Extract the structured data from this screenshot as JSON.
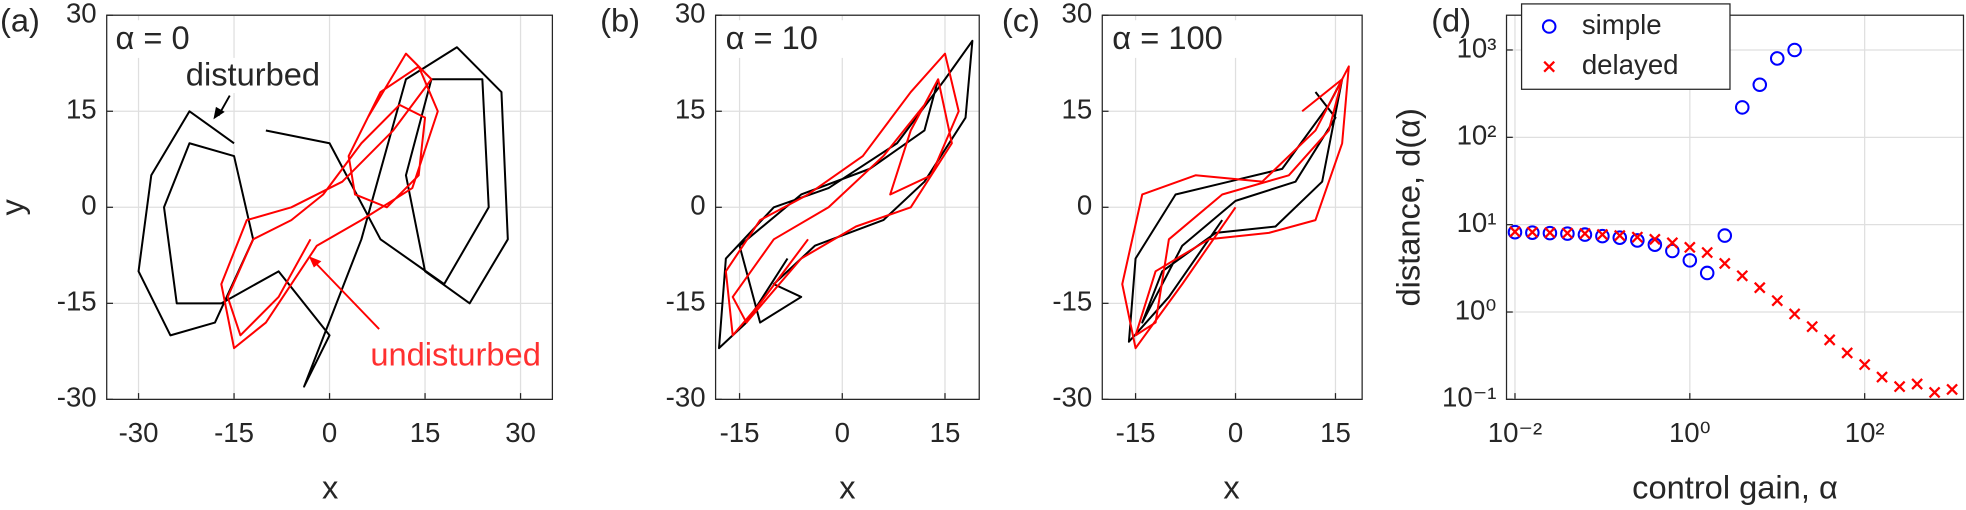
{
  "chart_data": [
    {
      "type": "line",
      "label": "(a)",
      "x_label": "x",
      "y_label": "y",
      "annotations": [
        "α = 0",
        "disturbed",
        "undisturbed"
      ],
      "xlim": [
        -35,
        35
      ],
      "xticks": [
        -30,
        -15,
        0,
        15,
        30
      ],
      "ylim": [
        -30,
        30
      ],
      "yticks": [
        -30,
        -15,
        0,
        15,
        30
      ],
      "grid": true,
      "series": [
        {
          "color": "#000000",
          "x": [
            -15,
            -22,
            -28,
            -30,
            -25,
            -18,
            -12,
            -15,
            -22,
            -26,
            -24,
            -17,
            -8,
            0,
            -4,
            5,
            12,
            20,
            27,
            28,
            22,
            15,
            12,
            16,
            24,
            25,
            18,
            8,
            0,
            -10
          ],
          "y": [
            10,
            15,
            5,
            -10,
            -20,
            -18,
            -5,
            8,
            10,
            0,
            -15,
            -15,
            -10,
            -20,
            -28,
            -5,
            20,
            25,
            18,
            -5,
            -15,
            -10,
            5,
            20,
            20,
            0,
            -12,
            -5,
            10,
            12
          ]
        },
        {
          "color": "#ff0000",
          "x": [
            -3,
            -8,
            -14,
            -16,
            -12,
            -6,
            -1,
            5,
            11,
            15,
            14,
            9,
            4,
            3,
            8,
            14,
            17,
            13,
            5,
            -2,
            -10,
            -15,
            -17,
            -13,
            -6,
            2,
            10,
            16,
            12,
            6
          ],
          "y": [
            -5,
            -14,
            -20,
            -14,
            -5,
            -2,
            2,
            10,
            16,
            14,
            5,
            0,
            2,
            8,
            18,
            22,
            15,
            3,
            -2,
            -6,
            -18,
            -22,
            -12,
            -2,
            0,
            4,
            12,
            20,
            24,
            14
          ]
        }
      ]
    },
    {
      "type": "line",
      "label": "(b)",
      "x_label": "x",
      "annotations": [
        "α = 10"
      ],
      "xlim": [
        -18.5,
        20
      ],
      "xticks": [
        -15,
        0,
        15
      ],
      "ylim": [
        -30,
        30
      ],
      "yticks": [
        -30,
        -15,
        0,
        15,
        30
      ],
      "grid": true,
      "series": [
        {
          "color": "#000000",
          "x": [
            -8,
            -14,
            -18,
            -17,
            -10,
            -2,
            8,
            15,
            19,
            18,
            12,
            6,
            -4,
            -10,
            -6,
            -12,
            -15,
            -6,
            4,
            12,
            14
          ],
          "y": [
            -8,
            -18,
            -22,
            -8,
            0,
            3,
            10,
            20,
            26,
            14,
            4,
            -2,
            -6,
            -12,
            -14,
            -18,
            -6,
            2,
            6,
            12,
            20
          ]
        },
        {
          "color": "#ff0000",
          "x": [
            -5,
            -12,
            -16,
            -17,
            -12,
            -5,
            3,
            10,
            15,
            17,
            13,
            7,
            10,
            14,
            16,
            10,
            2,
            -6,
            -14,
            -16,
            -10,
            -2,
            6,
            12
          ],
          "y": [
            -5,
            -15,
            -20,
            -10,
            -2,
            2,
            8,
            18,
            24,
            15,
            5,
            2,
            12,
            20,
            10,
            0,
            -3,
            -8,
            -18,
            -14,
            -5,
            0,
            8,
            16
          ]
        }
      ]
    },
    {
      "type": "line",
      "label": "(c)",
      "x_label": "x",
      "annotations": [
        "α = 100"
      ],
      "xlim": [
        -20,
        19
      ],
      "xticks": [
        -15,
        0,
        15
      ],
      "ylim": [
        -30,
        30
      ],
      "yticks": [
        -30,
        -15,
        0,
        15,
        30
      ],
      "grid": true,
      "series": [
        {
          "color": "#000000",
          "x": [
            -2,
            -10,
            -16,
            -15,
            -9,
            -1,
            7,
            14,
            16,
            13,
            6,
            -3,
            -11,
            -14,
            -8,
            0,
            9,
            15,
            12
          ],
          "y": [
            -2,
            -14,
            -21,
            -8,
            2,
            4,
            6,
            16,
            20,
            4,
            -3,
            -4,
            -10,
            -18,
            -6,
            1,
            4,
            14,
            18
          ]
        },
        {
          "color": "#ff0000",
          "x": [
            0,
            -8,
            -15,
            -17,
            -14,
            -6,
            4,
            12,
            17,
            16,
            12,
            5,
            -4,
            -12,
            -15,
            -12,
            -10,
            -2,
            8,
            14,
            16,
            10
          ],
          "y": [
            0,
            -12,
            -22,
            -12,
            2,
            5,
            4,
            12,
            22,
            10,
            -2,
            -4,
            -5,
            -10,
            -20,
            -18,
            -5,
            2,
            5,
            12,
            20,
            15
          ]
        }
      ]
    },
    {
      "type": "scatter",
      "label": "(d)",
      "x_label": "control gain, α",
      "y_label": "distance, d(α)",
      "log_scale": true,
      "grid": true,
      "legend": "upper left",
      "xlim": [
        0.008,
        1350
      ],
      "xticks": [
        {
          "value": 0.01,
          "label": "10⁻²"
        },
        {
          "value": 1,
          "label": "10⁰"
        },
        {
          "value": 100,
          "label": "10²"
        }
      ],
      "ylim": [
        0.1,
        2500
      ],
      "yticks": [
        {
          "value": 0.1,
          "label": "10⁻¹"
        },
        {
          "value": 1,
          "label": "10⁰"
        },
        {
          "value": 10,
          "label": "10¹"
        },
        {
          "value": 100,
          "label": "10²"
        },
        {
          "value": 1000,
          "label": "10³"
        }
      ],
      "series": [
        {
          "name": "simple",
          "color": "#0000ff",
          "marker": "o",
          "x": [
            0.01,
            0.0158,
            0.0251,
            0.0398,
            0.0631,
            0.1,
            0.158,
            0.251,
            0.398,
            0.631,
            1,
            1.58,
            2.51,
            3.98,
            6.31,
            10,
            15.8
          ],
          "values": [
            8.2,
            8.1,
            8,
            7.9,
            7.7,
            7.4,
            7.1,
            6.6,
            5.9,
            5,
            3.9,
            2.8,
            7.5,
            220,
            400,
            800,
            1000
          ]
        },
        {
          "name": "delayed",
          "color": "#ff0000",
          "marker": "x",
          "x": [
            0.01,
            0.0158,
            0.0251,
            0.0398,
            0.0631,
            0.1,
            0.158,
            0.251,
            0.398,
            0.631,
            1,
            1.58,
            2.51,
            3.98,
            6.31,
            10,
            15.8,
            25.1,
            39.8,
            63.1,
            100,
            158,
            251,
            398,
            631,
            1000
          ],
          "values": [
            8.3,
            8.2,
            8.1,
            8,
            7.9,
            7.7,
            7.5,
            7.2,
            6.8,
            6.2,
            5.5,
            4.8,
            3.6,
            2.6,
            1.9,
            1.35,
            0.95,
            0.68,
            0.48,
            0.34,
            0.25,
            0.18,
            0.14,
            0.15,
            0.12,
            0.13
          ]
        }
      ]
    }
  ]
}
